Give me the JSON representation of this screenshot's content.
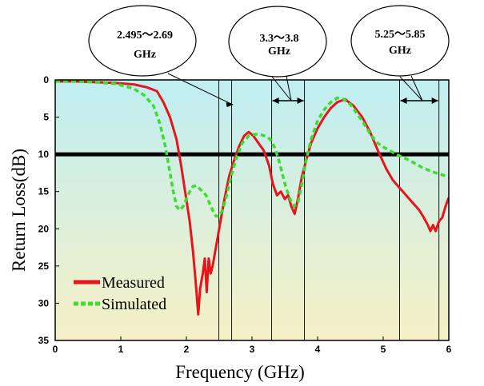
{
  "chart_data": {
    "type": "line",
    "xlabel": "Frequency (GHz)",
    "ylabel": "Return Loss(dB)",
    "xlim": [
      0,
      6
    ],
    "ylim": [
      0,
      35
    ],
    "y_inverted": true,
    "x_ticks": [
      "0",
      "1",
      "2",
      "3",
      "4",
      "5",
      "6"
    ],
    "y_ticks": [
      "0",
      "5",
      "10",
      "15",
      "20",
      "25",
      "30",
      "35"
    ],
    "threshold_db": 10,
    "background_gradient": [
      "#bfeef2",
      "#f6f0c6"
    ],
    "series": [
      {
        "name": "Measured",
        "color": "#e8141c",
        "style": "solid",
        "x": [
          0,
          0.3,
          0.6,
          0.9,
          1.2,
          1.4,
          1.55,
          1.65,
          1.75,
          1.85,
          1.92,
          1.98,
          2.05,
          2.1,
          2.14,
          2.18,
          2.21,
          2.25,
          2.28,
          2.31,
          2.34,
          2.37,
          2.4,
          2.45,
          2.52,
          2.58,
          2.65,
          2.72,
          2.8,
          2.88,
          2.95,
          3.02,
          3.1,
          3.18,
          3.26,
          3.32,
          3.38,
          3.44,
          3.5,
          3.55,
          3.6,
          3.65,
          3.7,
          3.76,
          3.82,
          3.9,
          4.0,
          4.1,
          4.2,
          4.3,
          4.42,
          4.55,
          4.68,
          4.8,
          4.92,
          5.05,
          5.15,
          5.25,
          5.35,
          5.45,
          5.55,
          5.62,
          5.68,
          5.72,
          5.76,
          5.8,
          5.85,
          5.9,
          5.95,
          6.0
        ],
        "y": [
          0.2,
          0.2,
          0.3,
          0.4,
          0.6,
          1.0,
          1.5,
          3.0,
          5.0,
          8.0,
          11.5,
          15.0,
          19.0,
          23.0,
          27.0,
          31.5,
          28.0,
          26.0,
          24.0,
          28.5,
          24.0,
          26.0,
          25.0,
          22.5,
          19.0,
          16.0,
          13.0,
          11.0,
          9.0,
          7.5,
          7.0,
          7.5,
          8.5,
          9.5,
          11.5,
          14.0,
          15.5,
          15.0,
          16.0,
          15.5,
          17.0,
          18.0,
          16.0,
          13.0,
          11.0,
          8.5,
          6.5,
          5.0,
          3.8,
          3.0,
          2.6,
          3.5,
          5.0,
          7.0,
          9.5,
          12.0,
          13.5,
          14.5,
          15.5,
          16.5,
          17.5,
          18.5,
          19.5,
          20.3,
          19.5,
          20.3,
          19.0,
          18.5,
          17.0,
          15.8
        ]
      },
      {
        "name": "Simulated",
        "color": "#3ddc2e",
        "style": "dashed",
        "x": [
          0,
          0.3,
          0.6,
          0.9,
          1.05,
          1.2,
          1.35,
          1.5,
          1.6,
          1.68,
          1.75,
          1.8,
          1.85,
          1.9,
          1.95,
          2.0,
          2.05,
          2.1,
          2.15,
          2.2,
          2.25,
          2.3,
          2.35,
          2.4,
          2.45,
          2.5,
          2.55,
          2.6,
          2.68,
          2.76,
          2.85,
          2.95,
          3.05,
          3.15,
          3.22,
          3.28,
          3.34,
          3.4,
          3.46,
          3.52,
          3.58,
          3.64,
          3.7,
          3.76,
          3.82,
          3.9,
          4.0,
          4.1,
          4.2,
          4.3,
          4.4,
          4.5,
          4.6,
          4.7,
          4.8,
          4.9,
          5.0,
          5.2,
          5.4,
          5.6,
          5.8,
          6.0
        ],
        "y": [
          0.2,
          0.2,
          0.3,
          0.5,
          0.8,
          1.2,
          2.0,
          3.5,
          6.0,
          9.0,
          12.5,
          15.0,
          17.0,
          17.5,
          17.0,
          16.0,
          15.0,
          14.3,
          14.2,
          14.6,
          15.0,
          15.5,
          16.5,
          17.5,
          18.3,
          18.3,
          17.5,
          16.0,
          13.0,
          10.5,
          8.5,
          7.5,
          7.3,
          7.4,
          7.6,
          8.0,
          9.0,
          10.5,
          12.5,
          14.5,
          16.0,
          17.0,
          16.5,
          14.0,
          11.0,
          8.0,
          5.5,
          4.0,
          3.0,
          2.4,
          2.6,
          3.3,
          4.5,
          5.8,
          7.2,
          8.4,
          9.0,
          10.0,
          10.8,
          11.8,
          12.5,
          13.0
        ]
      }
    ],
    "legend": {
      "position": "bottom-left",
      "entries": [
        "Measured",
        "Simulated"
      ]
    },
    "bands": [
      {
        "label_line1": "2.495～2.69",
        "label_line2": "GHz",
        "x_start": 2.495,
        "x_end": 2.69
      },
      {
        "label_line1": "3.3～3.8",
        "label_line2": "GHz",
        "x_start": 3.3,
        "x_end": 3.8
      },
      {
        "label_line1": "5.25～5.85",
        "label_line2": "GHz",
        "x_start": 5.25,
        "x_end": 5.85
      }
    ]
  }
}
